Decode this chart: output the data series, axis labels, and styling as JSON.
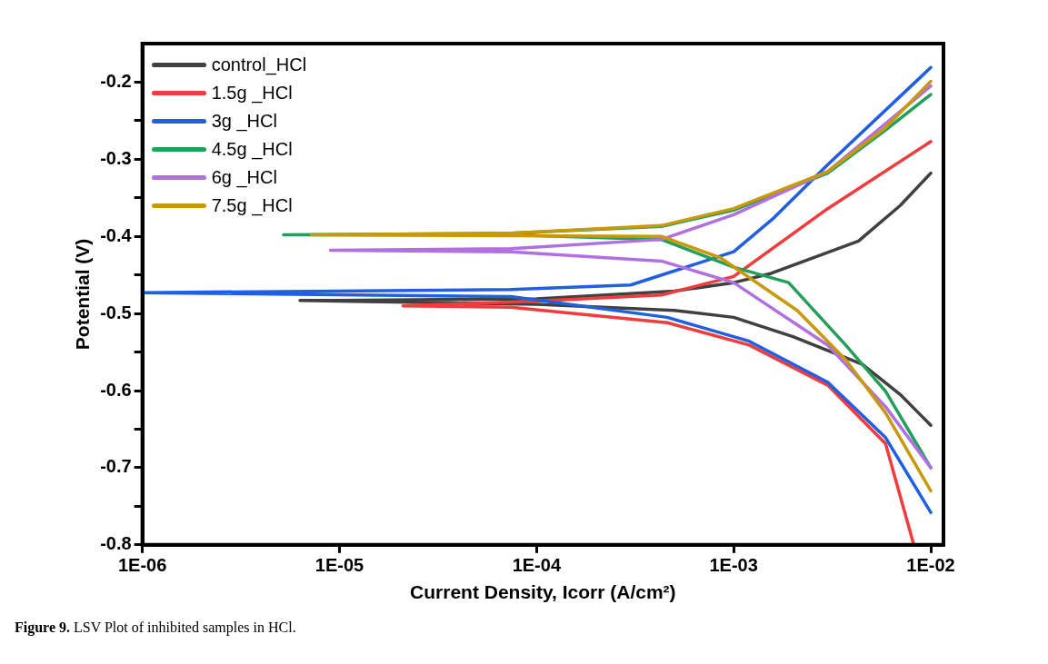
{
  "chart_data": {
    "type": "line",
    "xlabel": "Current Density, Icorr (A/cm²)",
    "ylabel": "Potential (V)",
    "log": "x",
    "legend": "top left",
    "marker": "none",
    "line_style": "solid",
    "xlim": [
      1e-06,
      0.0116
    ],
    "ylim": [
      -0.8,
      -0.15
    ],
    "xticks": [
      {
        "value": 1e-06,
        "label": "1E-06"
      },
      {
        "value": 1e-05,
        "label": "1E-05"
      },
      {
        "value": 0.0001,
        "label": "1E-04"
      },
      {
        "value": 0.001,
        "label": "1E-03"
      },
      {
        "value": 0.01,
        "label": "1E-02"
      }
    ],
    "yticks": [
      -0.8,
      {
        "value": -0.75,
        "label": null
      },
      -0.7,
      {
        "value": -0.65,
        "label": null
      },
      -0.6,
      {
        "value": -0.55,
        "label": null
      },
      -0.5,
      {
        "value": -0.45,
        "label": null
      },
      -0.4,
      {
        "value": -0.35,
        "label": null
      },
      -0.3,
      {
        "value": -0.25,
        "label": null
      },
      -0.2
    ],
    "annotations": [
      "Figure 9. LSV Plot of inhibited samples in HCl."
    ],
    "series": [
      {
        "name": "control_HCl",
        "color": "#404040",
        "x": [
          0.01,
          0.007,
          0.0043,
          0.00155,
          0.001,
          0.0005,
          0.0001,
          1e-05,
          6.3e-06,
          1e-05,
          0.0001,
          0.0005,
          0.001,
          0.002,
          0.0045,
          0.007,
          0.01
        ],
        "values": [
          -0.318,
          -0.36,
          -0.406,
          -0.448,
          -0.46,
          -0.471,
          -0.481,
          -0.483,
          -0.483,
          -0.484,
          -0.488,
          -0.496,
          -0.505,
          -0.53,
          -0.566,
          -0.605,
          -0.645
        ]
      },
      {
        "name": "1.5g _HCl",
        "color": "#f03c3c",
        "x": [
          0.01,
          0.003,
          0.001,
          0.00043,
          0.0001,
          2.1e-05,
          7.4e-05,
          0.00046,
          0.0012,
          0.003,
          0.0059,
          0.0082
        ],
        "values": [
          -0.277,
          -0.364,
          -0.452,
          -0.476,
          -0.484,
          -0.49,
          -0.492,
          -0.512,
          -0.541,
          -0.593,
          -0.669,
          -0.8
        ]
      },
      {
        "name": "3g _HCl",
        "color": "#1f5fe0",
        "x": [
          0.01,
          0.003,
          0.0016,
          0.001,
          0.0003,
          7.4e-05,
          1e-06,
          7.4e-05,
          0.00046,
          0.0012,
          0.003,
          0.0059,
          0.01
        ],
        "values": [
          -0.181,
          -0.307,
          -0.376,
          -0.42,
          -0.463,
          -0.469,
          -0.473,
          -0.478,
          -0.505,
          -0.536,
          -0.589,
          -0.661,
          -0.758
        ]
      },
      {
        "name": "4.5g _HCl",
        "color": "#22a05a",
        "x": [
          0.01,
          0.0059,
          0.003,
          0.001,
          0.00043,
          7.4e-05,
          5.2e-06,
          7.4e-05,
          0.00043,
          0.001,
          0.0019,
          0.0037,
          0.0059,
          0.01
        ],
        "values": [
          -0.216,
          -0.262,
          -0.318,
          -0.366,
          -0.387,
          -0.396,
          -0.398,
          -0.398,
          -0.404,
          -0.44,
          -0.46,
          -0.541,
          -0.601,
          -0.7
        ]
      },
      {
        "name": "6g _HCl",
        "color": "#b070e0",
        "x": [
          0.01,
          0.003,
          0.001,
          0.00043,
          7.4e-05,
          9e-06,
          7.4e-05,
          0.00043,
          0.001,
          0.003,
          0.0059,
          0.01
        ],
        "values": [
          -0.205,
          -0.316,
          -0.372,
          -0.404,
          -0.416,
          -0.418,
          -0.42,
          -0.432,
          -0.46,
          -0.541,
          -0.621,
          -0.7
        ]
      },
      {
        "name": "7.5g _HCl",
        "color": "#c8990a",
        "x": [
          0.01,
          0.0059,
          0.003,
          0.001,
          0.00043,
          7.4e-05,
          7.2e-06,
          7.4e-05,
          0.00043,
          0.00086,
          0.0021,
          0.0037,
          0.0059,
          0.01
        ],
        "values": [
          -0.199,
          -0.259,
          -0.316,
          -0.364,
          -0.386,
          -0.396,
          -0.398,
          -0.399,
          -0.4,
          -0.428,
          -0.496,
          -0.56,
          -0.629,
          -0.73
        ]
      }
    ]
  }
}
